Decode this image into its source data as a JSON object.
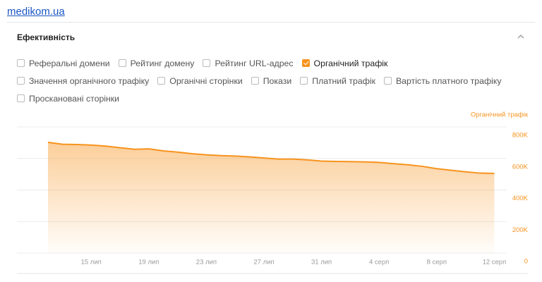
{
  "site_link": "medikom.ua",
  "panel": {
    "title": "Ефективність",
    "filters": [
      [
        {
          "label": "Реферальні домени",
          "checked": false
        },
        {
          "label": "Рейтинг домену",
          "checked": false
        },
        {
          "label": "Рейтинг URL-адрес",
          "checked": false
        },
        {
          "label": "Органічний трафік",
          "checked": true
        }
      ],
      [
        {
          "label": "Значення органічного трафіку",
          "checked": false
        },
        {
          "label": "Органічні сторінки",
          "checked": false
        },
        {
          "label": "Покази",
          "checked": false
        },
        {
          "label": "Платний трафік",
          "checked": false
        },
        {
          "label": "Вартість платного трафіку",
          "checked": false
        }
      ],
      [
        {
          "label": "Проскановані сторінки",
          "checked": false
        }
      ]
    ]
  },
  "chart_data": {
    "type": "area",
    "categories": [
      null,
      null,
      null,
      "15 лип",
      null,
      null,
      null,
      "19 лип",
      null,
      null,
      null,
      "23 лип",
      null,
      null,
      null,
      "27 лип",
      null,
      null,
      null,
      "31 лип",
      null,
      null,
      null,
      "4 серп",
      null,
      null,
      null,
      "8 серп",
      null,
      null,
      null,
      "12 серп"
    ],
    "series": [
      {
        "name": "Органічний трафік",
        "color": "#f7931e",
        "values": [
          702000,
          690000,
          688000,
          685000,
          678000,
          668000,
          658000,
          661000,
          648000,
          640000,
          630000,
          623000,
          618000,
          615000,
          610000,
          603000,
          596000,
          596000,
          591000,
          583000,
          581000,
          580000,
          578000,
          575000,
          567000,
          560000,
          550000,
          535000,
          525000,
          515000,
          507000,
          505000
        ]
      }
    ],
    "ylim": [
      0,
      800000
    ],
    "yticks": [
      0,
      {
        "value": 200000,
        "label": "200K"
      },
      {
        "value": 400000,
        "label": "400K"
      },
      {
        "value": 600000,
        "label": "600K"
      },
      {
        "value": 800000,
        "label": "800K"
      }
    ],
    "grid": true,
    "legend": "top-right"
  }
}
